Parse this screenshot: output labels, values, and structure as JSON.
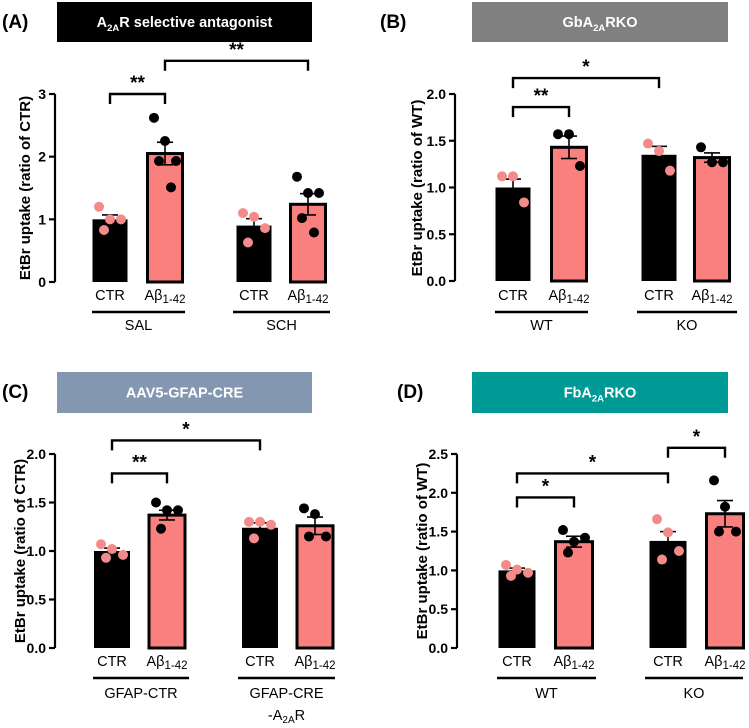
{
  "colors": {
    "black": "#000000",
    "pink": "#fa8080",
    "pink_point": "#f58a8a"
  },
  "chart_data": [
    {
      "type": "bar",
      "panel_label": "(A)",
      "header": {
        "pre": "A",
        "sub": "2A",
        "post": "R selective antagonist",
        "color": "#000000"
      },
      "ylabel": "EtBr uptake (ratio of CTR)",
      "ylim": [
        0,
        3
      ],
      "yticks": [
        "0",
        "1",
        "2",
        "3"
      ],
      "ytick_values": [
        0,
        1,
        2,
        3
      ],
      "bars": [
        {
          "label": "CTR",
          "label_sub": "",
          "group": "SAL",
          "fill": "black",
          "mean": 1.0,
          "sem": 0.07,
          "points": [
            1.2,
            1.0,
            1.0,
            0.83
          ]
        },
        {
          "label": "Aβ",
          "label_sub": "1-42",
          "group": "SAL",
          "fill": "pink",
          "mean": 2.05,
          "sem": 0.18,
          "points": [
            2.62,
            2.25,
            1.93,
            1.93,
            1.51
          ]
        },
        {
          "label": "CTR",
          "label_sub": "",
          "group": "SCH",
          "fill": "black",
          "mean": 0.9,
          "sem": 0.11,
          "points": [
            1.1,
            1.04,
            0.86,
            0.63
          ]
        },
        {
          "label": "Aβ",
          "label_sub": "1-42",
          "group": "SCH",
          "fill": "pink",
          "mean": 1.24,
          "sem": 0.17,
          "points": [
            1.68,
            1.42,
            1.42,
            1.02,
            0.79
          ]
        }
      ],
      "groups": [
        {
          "name": "SAL",
          "name2": ""
        },
        {
          "name": "SCH",
          "name2": ""
        }
      ],
      "significance": [
        {
          "from": 0,
          "to": 1,
          "level": 3.0,
          "label": "**"
        },
        {
          "from": 1,
          "to": 3,
          "level": 3.53,
          "label": "**"
        }
      ]
    },
    {
      "type": "bar",
      "panel_label": "(B)",
      "header": {
        "pre": "GbA",
        "sub": "2A",
        "post": "RKO",
        "color": "#808080"
      },
      "ylabel": "EtBr uptake (ratio of WT)",
      "ylim": [
        0,
        2
      ],
      "yticks": [
        "0.0",
        "0.5",
        "1.0",
        "1.5",
        "2.0"
      ],
      "ytick_values": [
        0,
        0.5,
        1,
        1.5,
        2
      ],
      "bars": [
        {
          "label": "CTR",
          "label_sub": "",
          "group": "WT",
          "fill": "black",
          "mean": 1.0,
          "sem": 0.09,
          "points": [
            1.12,
            1.12,
            0.84
          ]
        },
        {
          "label": "Aβ",
          "label_sub": "1-42",
          "group": "WT",
          "fill": "pink",
          "mean": 1.43,
          "sem": 0.12,
          "points": [
            1.57,
            1.57,
            1.23
          ]
        },
        {
          "label": "CTR",
          "label_sub": "",
          "group": "KO",
          "fill": "black",
          "mean": 1.35,
          "sem": 0.09,
          "points": [
            1.47,
            1.39,
            1.18
          ]
        },
        {
          "label": "Aβ",
          "label_sub": "1-42",
          "group": "KO",
          "fill": "pink",
          "mean": 1.32,
          "sem": 0.05,
          "points": [
            1.43,
            1.27,
            1.27
          ]
        }
      ],
      "groups": [
        {
          "name": "WT",
          "name2": ""
        },
        {
          "name": "KO",
          "name2": ""
        }
      ],
      "significance": [
        {
          "from": 0,
          "to": 1,
          "level": 1.86,
          "label": "**"
        },
        {
          "from": 0,
          "to": 2,
          "level": 2.17,
          "label": "*"
        }
      ]
    },
    {
      "type": "bar",
      "panel_label": "(C)",
      "header": {
        "pre": "AAV5-GFAP-CRE",
        "sub": "",
        "post": "",
        "color": "#8497b0"
      },
      "ylabel": "EtBr uptake (ratio of CTR)",
      "ylim": [
        0,
        2
      ],
      "yticks": [
        "0.0",
        "0.5",
        "1.0",
        "1.5",
        "2.0"
      ],
      "ytick_values": [
        0,
        0.5,
        1,
        1.5,
        2
      ],
      "bars": [
        {
          "label": "CTR",
          "label_sub": "",
          "group": "GFAP-CTR",
          "fill": "black",
          "mean": 1.0,
          "sem": 0.03,
          "points": [
            1.07,
            1.02,
            0.96,
            0.93
          ]
        },
        {
          "label": "Aβ",
          "label_sub": "1-42",
          "group": "GFAP-CTR",
          "fill": "pink",
          "mean": 1.37,
          "sem": 0.05,
          "points": [
            1.5,
            1.42,
            1.42,
            1.23
          ]
        },
        {
          "label": "CTR",
          "label_sub": "",
          "group": "GFAP-CRE-A2AR",
          "fill": "black",
          "mean": 1.24,
          "sem": 0.05,
          "points": [
            1.3,
            1.3,
            1.27,
            1.13
          ]
        },
        {
          "label": "Aβ",
          "label_sub": "1-42",
          "group": "GFAP-CRE-A2AR",
          "fill": "pink",
          "mean": 1.26,
          "sem": 0.09,
          "points": [
            1.44,
            1.38,
            1.15,
            1.15
          ]
        }
      ],
      "groups": [
        {
          "name": "GFAP-CTR",
          "name2": ""
        },
        {
          "name": "GFAP-CRE",
          "name2": "-A",
          "name2_sub": "2A",
          "name2_post": "R"
        }
      ],
      "significance": [
        {
          "from": 0,
          "to": 1,
          "level": 1.8,
          "label": "**"
        },
        {
          "from": 0,
          "to": 2,
          "level": 2.14,
          "label": "*"
        }
      ]
    },
    {
      "type": "bar",
      "panel_label": "(D)",
      "header": {
        "pre": "FbA",
        "sub": "2A",
        "post": "RKO",
        "color": "#009a96"
      },
      "ylabel": "EtBr uptake (ratio of WT)",
      "ylim": [
        0,
        2.5
      ],
      "yticks": [
        "0.0",
        "0.5",
        "1.0",
        "1.5",
        "2.0",
        "2.5"
      ],
      "ytick_values": [
        0,
        0.5,
        1,
        1.5,
        2,
        2.5
      ],
      "bars": [
        {
          "label": "CTR",
          "label_sub": "",
          "group": "WT",
          "fill": "black",
          "mean": 1.0,
          "sem": 0.03,
          "points": [
            1.07,
            1.01,
            0.97,
            0.93
          ]
        },
        {
          "label": "Aβ",
          "label_sub": "1-42",
          "group": "WT",
          "fill": "pink",
          "mean": 1.37,
          "sem": 0.07,
          "points": [
            1.52,
            1.37,
            1.42,
            1.23
          ]
        },
        {
          "label": "CTR",
          "label_sub": "",
          "group": "KO",
          "fill": "black",
          "mean": 1.38,
          "sem": 0.12,
          "points": [
            1.66,
            1.49,
            1.25,
            1.14
          ]
        },
        {
          "label": "Aβ",
          "label_sub": "1-42",
          "group": "KO",
          "fill": "pink",
          "mean": 1.73,
          "sem": 0.17,
          "points": [
            2.16,
            1.82,
            1.5,
            1.5
          ]
        }
      ],
      "groups": [
        {
          "name": "WT",
          "name2": ""
        },
        {
          "name": "KO",
          "name2": ""
        }
      ],
      "significance": [
        {
          "from": 0,
          "to": 1,
          "level": 1.94,
          "label": "*"
        },
        {
          "from": 0,
          "to": 2,
          "level": 2.25,
          "label": "*"
        },
        {
          "from": 2,
          "to": 3,
          "level": 2.58,
          "label": "*"
        }
      ]
    }
  ]
}
